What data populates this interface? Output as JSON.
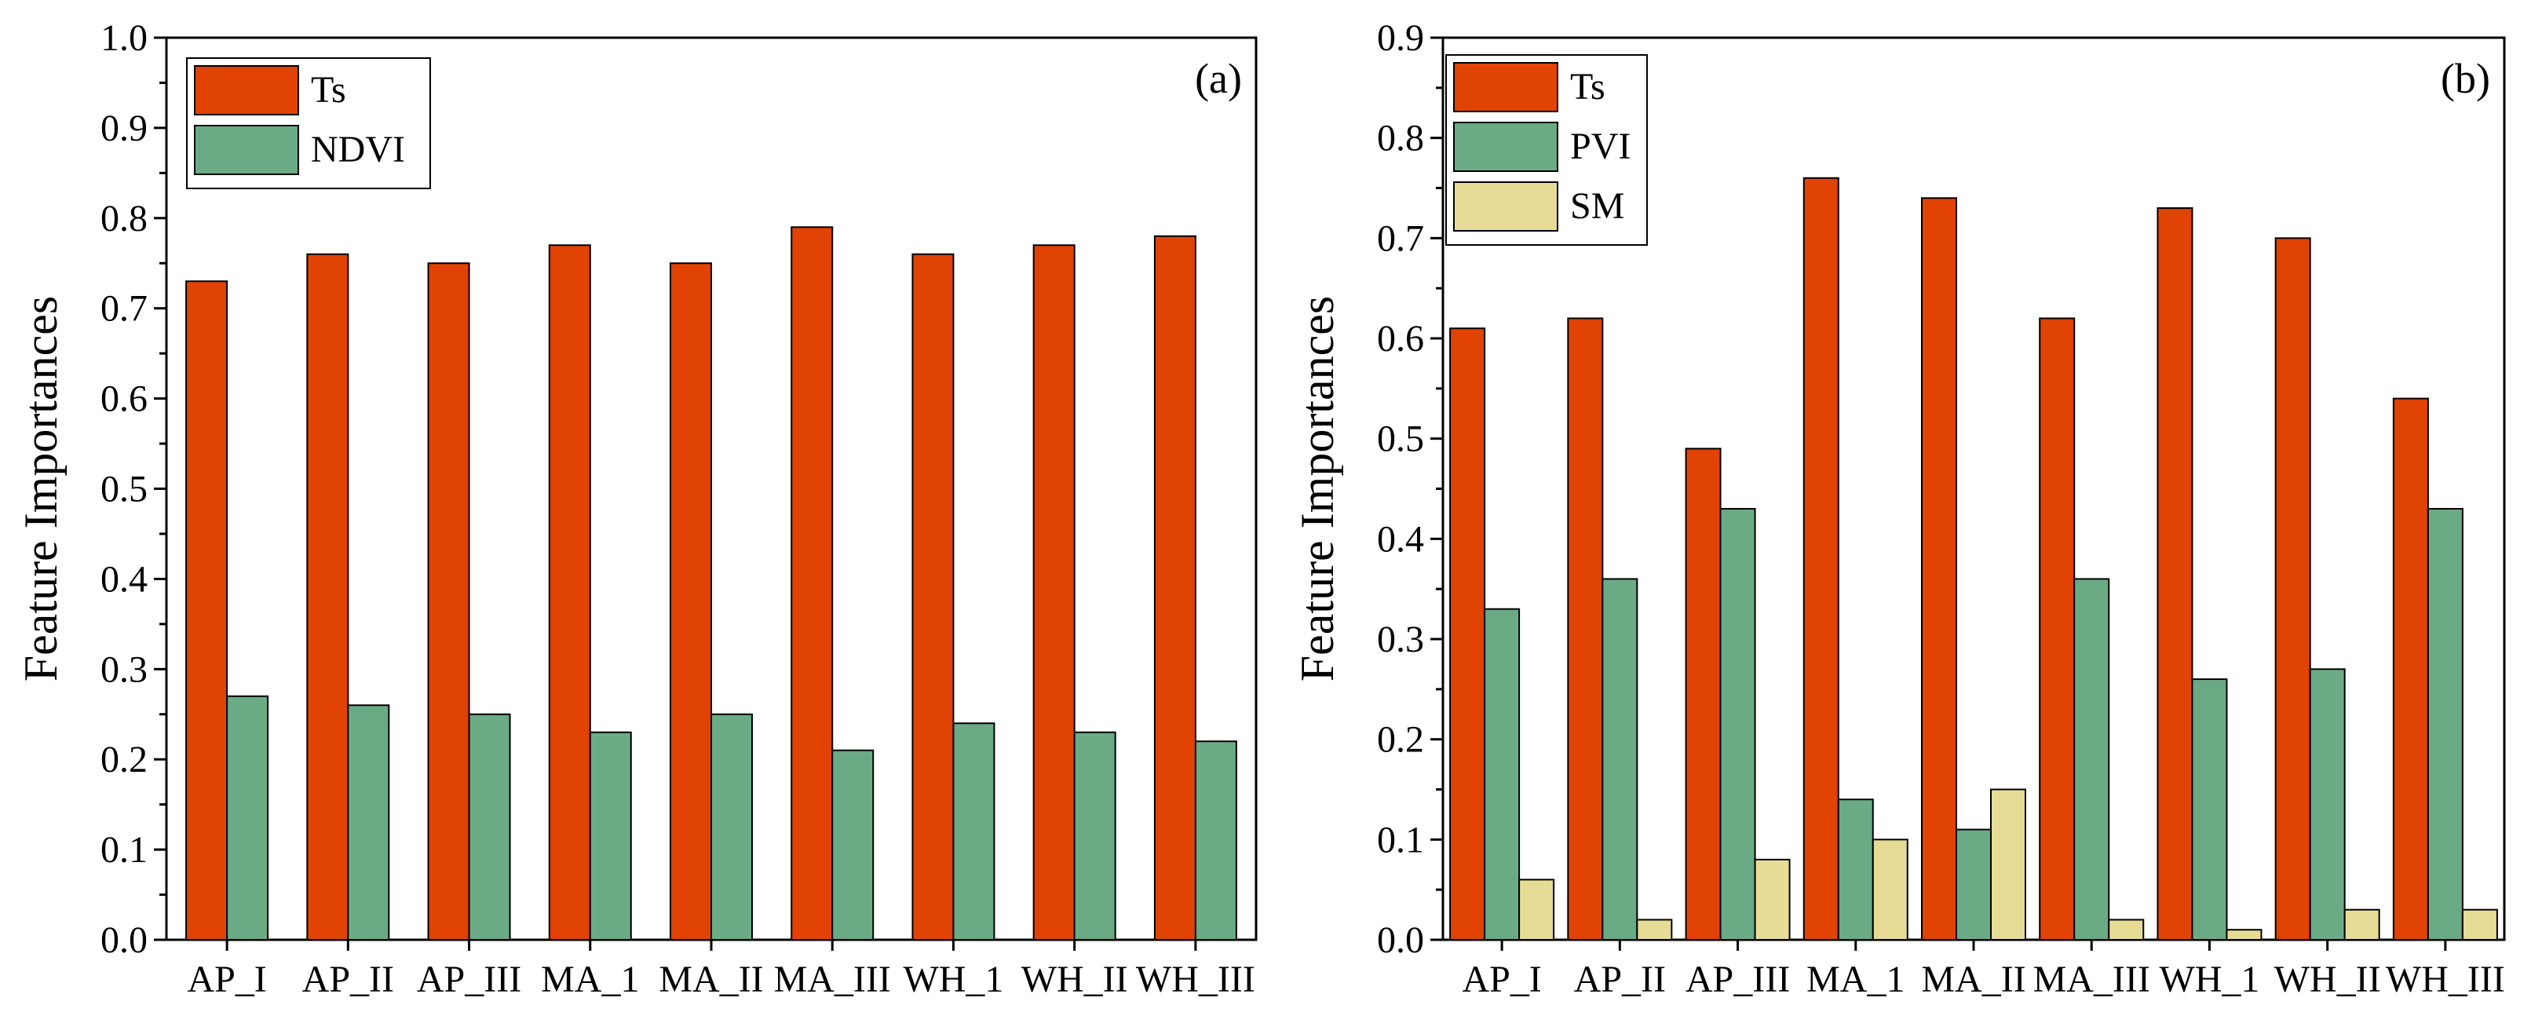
{
  "chart_data": [
    {
      "type": "bar",
      "panel_label": "(a)",
      "ylabel": "Feature Importances",
      "xlabel": "",
      "ylim": [
        0,
        1.0
      ],
      "yticks": [
        "0.0",
        "0.1",
        "0.2",
        "0.3",
        "0.4",
        "0.5",
        "0.6",
        "0.7",
        "0.8",
        "0.9",
        "1.0"
      ],
      "categories": [
        "AP_I",
        "AP_II",
        "AP_III",
        "MA_1",
        "MA_II",
        "MA_III",
        "WH_1",
        "WH_II",
        "WH_III"
      ],
      "series": [
        {
          "name": "Ts",
          "color": "#e04303",
          "values": [
            0.73,
            0.76,
            0.75,
            0.77,
            0.75,
            0.79,
            0.76,
            0.77,
            0.78
          ]
        },
        {
          "name": "NDVI",
          "color": "#6aab85",
          "values": [
            0.27,
            0.26,
            0.25,
            0.23,
            0.25,
            0.21,
            0.24,
            0.23,
            0.22
          ]
        }
      ],
      "legend_position": "top-left"
    },
    {
      "type": "bar",
      "panel_label": "(b)",
      "ylabel": "Feature Importances",
      "xlabel": "",
      "ylim": [
        0,
        0.9
      ],
      "yticks": [
        "0.0",
        "0.1",
        "0.2",
        "0.3",
        "0.4",
        "0.5",
        "0.6",
        "0.7",
        "0.8",
        "0.9"
      ],
      "categories": [
        "AP_I",
        "AP_II",
        "AP_III",
        "MA_1",
        "MA_II",
        "MA_III",
        "WH_1",
        "WH_II",
        "WH_III"
      ],
      "series": [
        {
          "name": "Ts",
          "color": "#e04303",
          "values": [
            0.61,
            0.62,
            0.49,
            0.76,
            0.74,
            0.62,
            0.73,
            0.7,
            0.54
          ]
        },
        {
          "name": "PVI",
          "color": "#6aab85",
          "values": [
            0.33,
            0.36,
            0.43,
            0.14,
            0.11,
            0.36,
            0.26,
            0.27,
            0.43
          ]
        },
        {
          "name": "SM",
          "color": "#e6dc96",
          "values": [
            0.06,
            0.02,
            0.08,
            0.1,
            0.15,
            0.02,
            0.01,
            0.03,
            0.03
          ]
        }
      ],
      "legend_position": "top-left"
    }
  ]
}
